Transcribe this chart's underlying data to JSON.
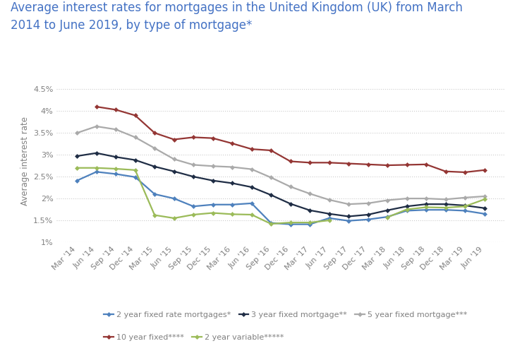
{
  "title_line1": "Average interest rates for mortgages in the United Kingdom (UK) from March",
  "title_line2": "2014 to June 2019, by type of mortgage*",
  "ylabel": "Average interest rate",
  "x_labels": [
    "Mar '14",
    "Jun '14",
    "Sep '14",
    "Dec '14",
    "Mar '15",
    "Jun '15",
    "Sep '15",
    "Dec '15",
    "Mar '16",
    "Jun '16",
    "Sep '16",
    "Dec '16",
    "Mar '17",
    "Jun '17",
    "Sep '17",
    "Dec '17",
    "Mar '18",
    "Jun '18",
    "Sep '18",
    "Dec '18",
    "Mar '19",
    "Jun '19"
  ],
  "series_order": [
    "2 year fixed rate mortgages*",
    "3 year fixed mortgage**",
    "5 year fixed mortgage***",
    "10 year fixed****",
    "2 year variable*****"
  ],
  "series": {
    "2 year fixed rate mortgages*": {
      "color": "#4e81bd",
      "values": [
        2.41,
        2.61,
        2.56,
        2.49,
        2.1,
        2.0,
        1.82,
        1.86,
        1.86,
        1.89,
        1.44,
        1.41,
        1.41,
        1.55,
        1.49,
        1.52,
        1.58,
        1.72,
        1.74,
        1.74,
        1.72,
        1.65
      ]
    },
    "3 year fixed mortgage**": {
      "color": "#1f2d45",
      "values": [
        2.97,
        3.04,
        2.95,
        2.88,
        2.73,
        2.62,
        2.5,
        2.41,
        2.35,
        2.26,
        2.08,
        1.88,
        1.73,
        1.65,
        1.59,
        1.63,
        1.73,
        1.82,
        1.87,
        1.87,
        1.84,
        1.78
      ]
    },
    "5 year fixed mortgage***": {
      "color": "#aaaaaa",
      "values": [
        3.5,
        3.65,
        3.58,
        3.4,
        3.15,
        2.9,
        2.77,
        2.74,
        2.72,
        2.67,
        2.48,
        2.27,
        2.11,
        1.97,
        1.87,
        1.89,
        1.96,
        2.0,
        2.0,
        1.98,
        2.02,
        2.05
      ]
    },
    "10 year fixed****": {
      "color": "#943634",
      "values": [
        null,
        4.1,
        4.03,
        3.9,
        3.5,
        3.35,
        3.4,
        3.38,
        3.26,
        3.13,
        3.1,
        2.85,
        2.82,
        2.82,
        2.8,
        2.78,
        2.76,
        2.77,
        2.78,
        2.62,
        2.6,
        2.65
      ]
    },
    "2 year variable*****": {
      "color": "#9bbb59",
      "values": [
        2.7,
        2.7,
        2.68,
        2.65,
        1.62,
        1.55,
        1.63,
        1.67,
        1.64,
        1.63,
        1.42,
        1.45,
        1.45,
        1.5,
        null,
        null,
        1.57,
        1.75,
        1.8,
        1.79,
        1.82,
        1.98
      ]
    }
  },
  "ylim": [
    1.0,
    4.72
  ],
  "yticks": [
    1.0,
    1.5,
    2.0,
    2.5,
    3.0,
    3.5,
    4.0,
    4.5
  ],
  "ytick_labels": [
    "1%",
    "1.5%",
    "2%",
    "2.5%",
    "3%",
    "3.5%",
    "4%",
    "4.5%"
  ],
  "background_color": "#ffffff",
  "grid_color": "#cccccc",
  "title_color": "#4472c4",
  "label_color": "#808080",
  "title_fontsize": 12,
  "axis_fontsize": 8.5,
  "tick_fontsize": 8,
  "legend_fontsize": 8
}
